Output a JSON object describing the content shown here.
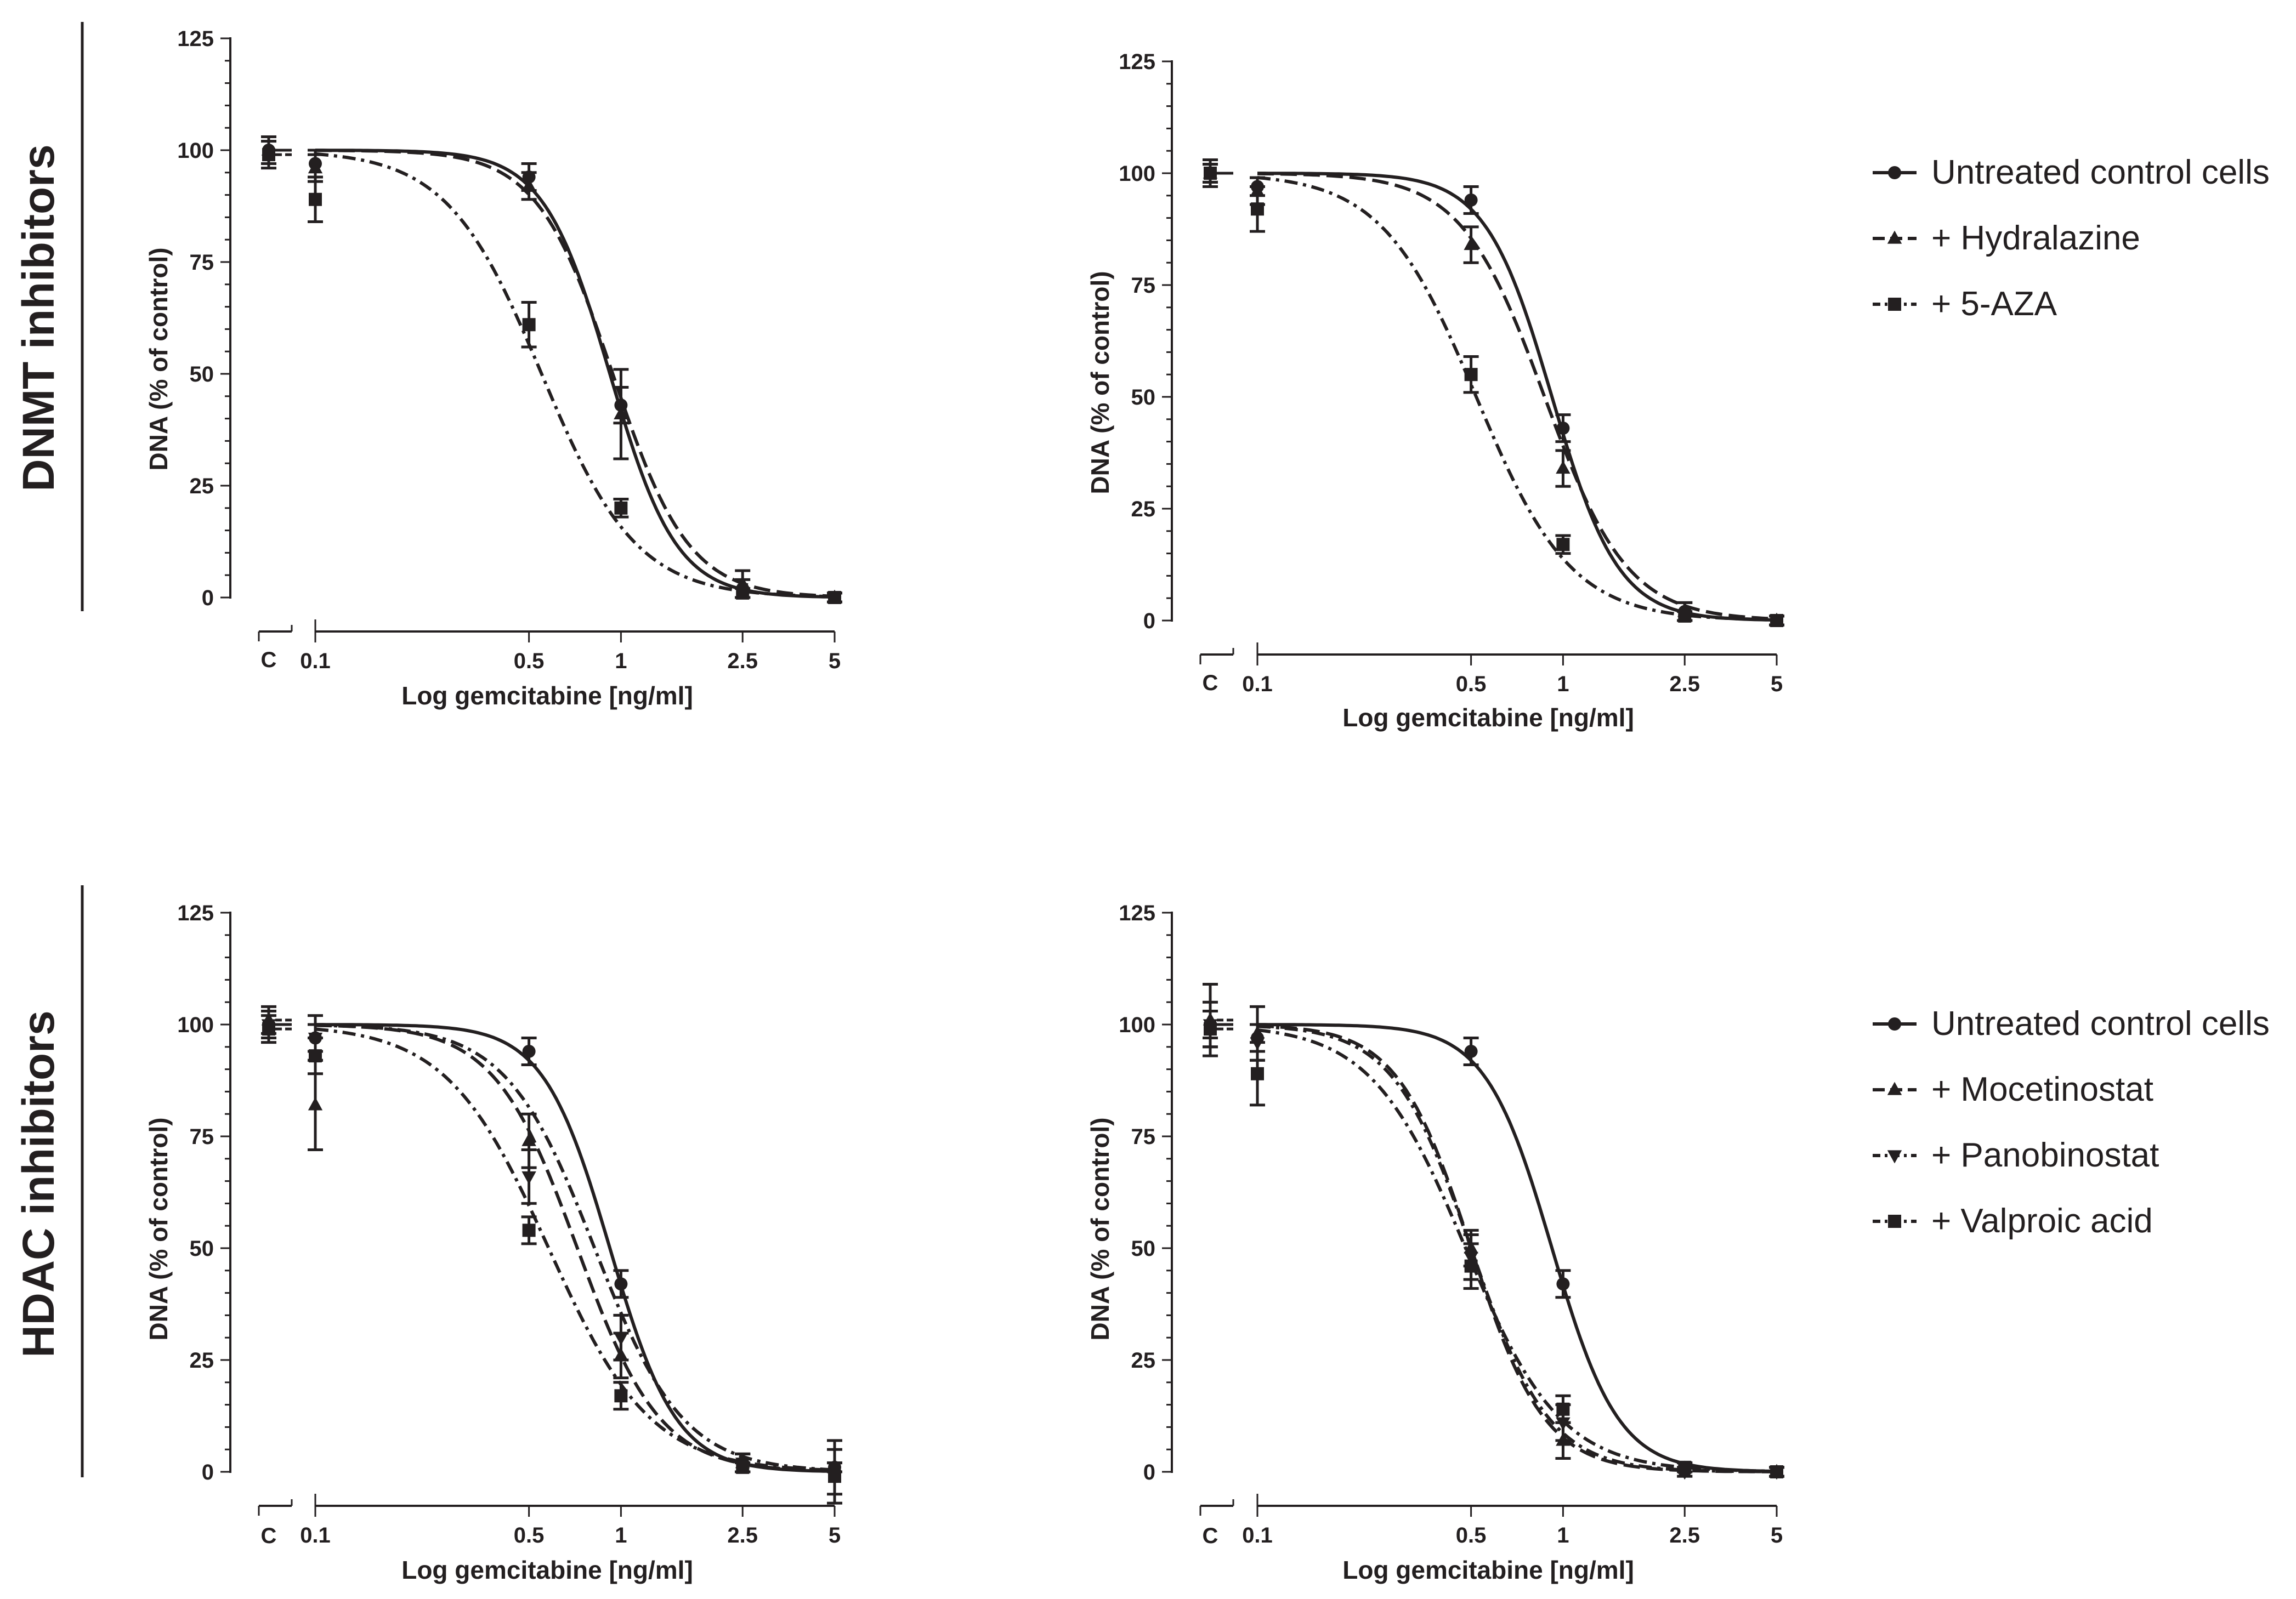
{
  "figure": {
    "side_labels": [
      "DNMT inhibitors",
      "HDAC inhibitors"
    ]
  },
  "legends": [
    {
      "entries": [
        {
          "label": "Untreated control cells",
          "dash": "solid",
          "marker": "circle"
        },
        {
          "label": "+ Hydralazine",
          "dash": "dash",
          "marker": "triangle-up"
        },
        {
          "label": "+ 5-AZA",
          "dash": "dashdot",
          "marker": "square"
        }
      ]
    },
    {
      "entries": [
        {
          "label": "Untreated control cells",
          "dash": "solid",
          "marker": "circle"
        },
        {
          "label": "+ Mocetinostat",
          "dash": "dash",
          "marker": "triangle-up"
        },
        {
          "label": "+ Panobinostat",
          "dash": "dashdot",
          "marker": "triangle-down"
        },
        {
          "label": "+ Valproic acid",
          "dash": "dashdot",
          "marker": "square"
        }
      ]
    }
  ],
  "chart_data": [
    {
      "type": "line",
      "title": "",
      "xlabel": "Log gemcitabine [ng/ml]",
      "ylabel": "DNA (% of control)",
      "x_ticks": [
        0.1,
        0.5,
        1,
        2.5,
        5
      ],
      "x_tick_labels": [
        "0.1",
        "0.5",
        "1",
        "2.5",
        "5"
      ],
      "control_label": "C",
      "xscale": "log",
      "ylim": [
        0,
        125
      ],
      "y_ticks": [
        0,
        25,
        50,
        75,
        100,
        125
      ],
      "series": [
        {
          "name": "Untreated control cells",
          "dash": "solid",
          "marker": "circle",
          "ec50": 0.92,
          "hill": 4.0,
          "control": {
            "y": 100,
            "err": 3
          },
          "points": [
            {
              "x": 0.1,
              "y": 97,
              "err": 3
            },
            {
              "x": 0.5,
              "y": 94,
              "err": 3
            },
            {
              "x": 1,
              "y": 43,
              "err": 4
            },
            {
              "x": 2.5,
              "y": 2,
              "err": 2
            },
            {
              "x": 5,
              "y": 0,
              "err": 1
            }
          ]
        },
        {
          "name": "+ Hydralazine",
          "dash": "dash",
          "marker": "triangle-up",
          "ec50": 0.94,
          "hill": 3.5,
          "control": {
            "y": 100,
            "err": 3
          },
          "points": [
            {
              "x": 0.1,
              "y": 96,
              "err": 3
            },
            {
              "x": 0.5,
              "y": 92,
              "err": 3
            },
            {
              "x": 1,
              "y": 41,
              "err": 10
            },
            {
              "x": 2.5,
              "y": 3,
              "err": 3
            },
            {
              "x": 5,
              "y": 0,
              "err": 1
            }
          ]
        },
        {
          "name": "+ 5-AZA",
          "dash": "dashdot",
          "marker": "square",
          "ec50": 0.55,
          "hill": 2.8,
          "control": {
            "y": 99,
            "err": 3
          },
          "points": [
            {
              "x": 0.1,
              "y": 89,
              "err": 5
            },
            {
              "x": 0.5,
              "y": 61,
              "err": 5
            },
            {
              "x": 1,
              "y": 20,
              "err": 2
            },
            {
              "x": 2.5,
              "y": 1,
              "err": 1
            },
            {
              "x": 5,
              "y": 0,
              "err": 1
            }
          ]
        }
      ]
    },
    {
      "type": "line",
      "title": "",
      "xlabel": "Log gemcitabine [ng/ml]",
      "ylabel": "DNA (% of control)",
      "x_ticks": [
        0.1,
        0.5,
        1,
        2.5,
        5
      ],
      "x_tick_labels": [
        "0.1",
        "0.5",
        "1",
        "2.5",
        "5"
      ],
      "control_label": "C",
      "xscale": "log",
      "ylim": [
        0,
        125
      ],
      "y_ticks": [
        0,
        25,
        50,
        75,
        100,
        125
      ],
      "series": [
        {
          "name": "Untreated control cells",
          "dash": "solid",
          "marker": "circle",
          "ec50": 0.92,
          "hill": 4.0,
          "control": {
            "y": 100,
            "err": 3
          },
          "points": [
            {
              "x": 0.1,
              "y": 97,
              "err": 2
            },
            {
              "x": 0.5,
              "y": 94,
              "err": 3
            },
            {
              "x": 1,
              "y": 43,
              "err": 3
            },
            {
              "x": 2.5,
              "y": 2,
              "err": 2
            },
            {
              "x": 5,
              "y": 0,
              "err": 1
            }
          ]
        },
        {
          "name": "+ Hydralazine",
          "dash": "dash",
          "marker": "triangle-up",
          "ec50": 0.87,
          "hill": 3.2,
          "control": {
            "y": 100,
            "err": 2
          },
          "points": [
            {
              "x": 0.1,
              "y": 96,
              "err": 3
            },
            {
              "x": 0.5,
              "y": 84,
              "err": 4
            },
            {
              "x": 1,
              "y": 34,
              "err": 4
            },
            {
              "x": 2.5,
              "y": 2,
              "err": 2
            },
            {
              "x": 5,
              "y": 0,
              "err": 1
            }
          ]
        },
        {
          "name": "+ 5-AZA",
          "dash": "dashdot",
          "marker": "square",
          "ec50": 0.52,
          "hill": 2.8,
          "control": {
            "y": 100,
            "err": 2
          },
          "points": [
            {
              "x": 0.1,
              "y": 92,
              "err": 5
            },
            {
              "x": 0.5,
              "y": 55,
              "err": 4
            },
            {
              "x": 1,
              "y": 17,
              "err": 2
            },
            {
              "x": 2.5,
              "y": 1,
              "err": 1
            },
            {
              "x": 5,
              "y": 0,
              "err": 1
            }
          ]
        }
      ]
    },
    {
      "type": "line",
      "title": "",
      "xlabel": "Log gemcitabine [ng/ml]",
      "ylabel": "DNA (% of control)",
      "x_ticks": [
        0.1,
        0.5,
        1,
        2.5,
        5
      ],
      "x_tick_labels": [
        "0.1",
        "0.5",
        "1",
        "2.5",
        "5"
      ],
      "control_label": "C",
      "xscale": "log",
      "ylim": [
        0,
        125
      ],
      "y_ticks": [
        0,
        25,
        50,
        75,
        100,
        125
      ],
      "series": [
        {
          "name": "Untreated control cells",
          "dash": "solid",
          "marker": "circle",
          "ec50": 0.92,
          "hill": 4.0,
          "control": {
            "y": 100,
            "err": 3
          },
          "points": [
            {
              "x": 0.1,
              "y": 97,
              "err": 3
            },
            {
              "x": 0.5,
              "y": 94,
              "err": 3
            },
            {
              "x": 1,
              "y": 42,
              "err": 3
            },
            {
              "x": 2.5,
              "y": 2,
              "err": 2
            },
            {
              "x": 5,
              "y": 1,
              "err": 1
            }
          ]
        },
        {
          "name": "+ Mocetinostat",
          "dash": "dash",
          "marker": "triangle-up",
          "ec50": 0.72,
          "hill": 3.2,
          "control": {
            "y": 101,
            "err": 3
          },
          "points": [
            {
              "x": 0.1,
              "y": 82,
              "err": 10
            },
            {
              "x": 0.5,
              "y": 74,
              "err": 6
            },
            {
              "x": 1,
              "y": 26,
              "err": 5
            },
            {
              "x": 2.5,
              "y": 2,
              "err": 2
            },
            {
              "x": 5,
              "y": 1,
              "err": 6
            }
          ]
        },
        {
          "name": "+ Panobinostat",
          "dash": "dashdot",
          "marker": "triangle-down",
          "ec50": 0.82,
          "hill": 3.0,
          "control": {
            "y": 100,
            "err": 3
          },
          "points": [
            {
              "x": 0.1,
              "y": 97,
              "err": 5
            },
            {
              "x": 0.5,
              "y": 66,
              "err": 6
            },
            {
              "x": 1,
              "y": 30,
              "err": 5
            },
            {
              "x": 2.5,
              "y": 2,
              "err": 2
            },
            {
              "x": 5,
              "y": 1,
              "err": 1
            }
          ]
        },
        {
          "name": "+ Valproic acid",
          "dash": "dashdot",
          "marker": "square",
          "ec50": 0.58,
          "hill": 2.6,
          "control": {
            "y": 99,
            "err": 3
          },
          "points": [
            {
              "x": 0.1,
              "y": 93,
              "err": 4
            },
            {
              "x": 0.5,
              "y": 54,
              "err": 3
            },
            {
              "x": 1,
              "y": 17,
              "err": 3
            },
            {
              "x": 2.5,
              "y": 1,
              "err": 1
            },
            {
              "x": 5,
              "y": -1,
              "err": 6
            }
          ]
        }
      ]
    },
    {
      "type": "line",
      "title": "",
      "xlabel": "Log gemcitabine [ng/ml]",
      "ylabel": "DNA (% of control)",
      "x_ticks": [
        0.1,
        0.5,
        1,
        2.5,
        5
      ],
      "x_tick_labels": [
        "0.1",
        "0.5",
        "1",
        "2.5",
        "5"
      ],
      "control_label": "C",
      "xscale": "log",
      "ylim": [
        0,
        125
      ],
      "y_ticks": [
        0,
        25,
        50,
        75,
        100,
        125
      ],
      "series": [
        {
          "name": "Untreated control cells",
          "dash": "solid",
          "marker": "circle",
          "ec50": 0.92,
          "hill": 4.0,
          "control": {
            "y": 100,
            "err": 3
          },
          "points": [
            {
              "x": 0.1,
              "y": 97,
              "err": 3
            },
            {
              "x": 0.5,
              "y": 94,
              "err": 3
            },
            {
              "x": 1,
              "y": 42,
              "err": 3
            },
            {
              "x": 2.5,
              "y": 1,
              "err": 1
            },
            {
              "x": 5,
              "y": 0,
              "err": 1
            }
          ]
        },
        {
          "name": "+ Mocetinostat",
          "dash": "dash",
          "marker": "triangle-up",
          "ec50": 0.5,
          "hill": 3.6,
          "control": {
            "y": 101,
            "err": 8
          },
          "points": [
            {
              "x": 0.1,
              "y": 98,
              "err": 6
            },
            {
              "x": 0.5,
              "y": 50,
              "err": 4
            },
            {
              "x": 1,
              "y": 7,
              "err": 4
            },
            {
              "x": 2.5,
              "y": 0,
              "err": 1
            },
            {
              "x": 5,
              "y": 0,
              "err": 1
            }
          ]
        },
        {
          "name": "+ Panobinostat",
          "dash": "dashdot",
          "marker": "triangle-down",
          "ec50": 0.5,
          "hill": 3.4,
          "control": {
            "y": 100,
            "err": 5
          },
          "points": [
            {
              "x": 0.1,
              "y": 96,
              "err": 4
            },
            {
              "x": 0.5,
              "y": 48,
              "err": 5
            },
            {
              "x": 1,
              "y": 11,
              "err": 4
            },
            {
              "x": 2.5,
              "y": 0,
              "err": 1
            },
            {
              "x": 5,
              "y": 0,
              "err": 1
            }
          ]
        },
        {
          "name": "+ Valproic acid",
          "dash": "dashdot",
          "marker": "square",
          "ec50": 0.48,
          "hill": 2.8,
          "control": {
            "y": 99,
            "err": 4
          },
          "points": [
            {
              "x": 0.1,
              "y": 89,
              "err": 7
            },
            {
              "x": 0.5,
              "y": 46,
              "err": 5
            },
            {
              "x": 1,
              "y": 14,
              "err": 3
            },
            {
              "x": 2.5,
              "y": 1,
              "err": 1
            },
            {
              "x": 5,
              "y": 0,
              "err": 1
            }
          ]
        }
      ]
    }
  ]
}
